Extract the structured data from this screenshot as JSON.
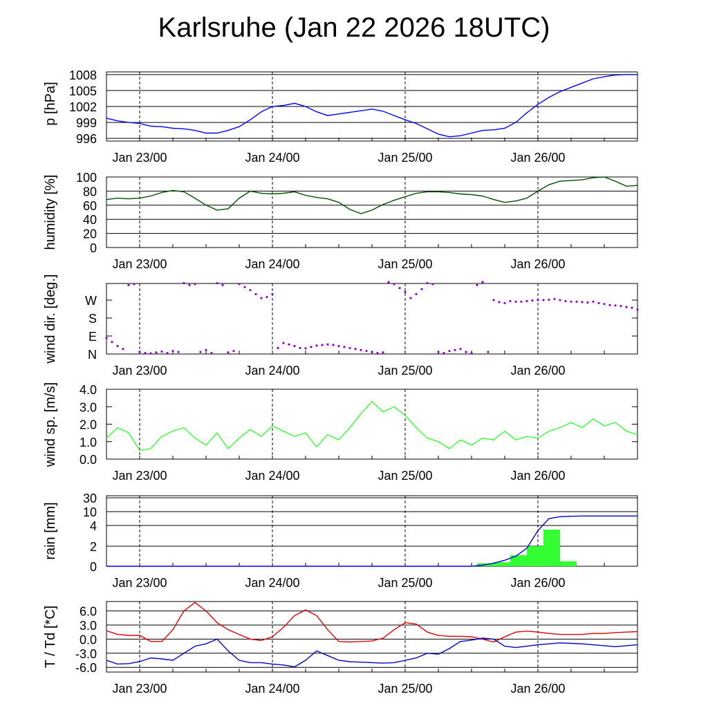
{
  "title": "Karlsruhe (Jan 22 2026 18UTC)",
  "x_ticks": [
    "Jan 23/00",
    "Jan 24/00",
    "Jan 25/00",
    "Jan 26/00"
  ],
  "colors": {
    "pressure": "#0000ff",
    "humidity": "#005000",
    "wind_dir": "#9400d3",
    "wind_speed": "#33ff33",
    "rain_bar": "#33ff33",
    "rain_line": "#0000dd",
    "temperature": "#e00000",
    "dewpoint": "#0000cc"
  },
  "chart_data": [
    {
      "id": "pressure",
      "type": "line",
      "ylabel": "p [hPa]",
      "yticks": [
        "1008",
        "1005",
        "1002",
        "999",
        "996"
      ],
      "ylim": [
        995.5,
        1008.5
      ],
      "x_unit": "hours since Jan 22 18UTC",
      "xlim": [
        0,
        96
      ],
      "series": [
        {
          "name": "pressure",
          "x": [
            0,
            2,
            4,
            6,
            8,
            10,
            12,
            14,
            16,
            18,
            20,
            22,
            24,
            26,
            28,
            30,
            32,
            34,
            36,
            38,
            40,
            42,
            44,
            46,
            48,
            50,
            52,
            54,
            56,
            58,
            60,
            62,
            64,
            66,
            68,
            70,
            72,
            74,
            76,
            78,
            80,
            82,
            84,
            86,
            88,
            90,
            92,
            94,
            96
          ],
          "y": [
            999.8,
            999.3,
            999.0,
            998.8,
            998.3,
            998.2,
            997.9,
            997.8,
            997.5,
            997.0,
            997.0,
            997.5,
            998.2,
            999.5,
            1001.0,
            1002.0,
            1002.2,
            1002.6,
            1002.0,
            1001.0,
            1000.3,
            1000.6,
            1000.9,
            1001.2,
            1001.5,
            1001.1,
            1000.3,
            999.5,
            998.8,
            997.8,
            996.8,
            996.3,
            996.5,
            997.0,
            997.5,
            997.6,
            997.9,
            999.0,
            1000.8,
            1002.4,
            1003.7,
            1004.8,
            1005.6,
            1006.4,
            1007.2,
            1007.6,
            1007.9,
            1008.0,
            1008.0
          ]
        }
      ]
    },
    {
      "id": "humidity",
      "type": "line",
      "ylabel": "humidity [%]",
      "yticks": [
        "100",
        "80",
        "60",
        "40",
        "20",
        "0"
      ],
      "ylim": [
        0,
        100
      ],
      "series": [
        {
          "name": "humidity",
          "x": [
            0,
            2,
            4,
            6,
            8,
            10,
            12,
            14,
            16,
            18,
            20,
            22,
            24,
            26,
            28,
            30,
            32,
            34,
            36,
            38,
            40,
            42,
            44,
            46,
            48,
            50,
            52,
            54,
            56,
            58,
            60,
            62,
            64,
            66,
            68,
            70,
            72,
            74,
            76,
            78,
            80,
            82,
            84,
            86,
            88,
            90,
            92,
            94,
            96
          ],
          "y": [
            68,
            70,
            69,
            70,
            73,
            78,
            81,
            79,
            70,
            60,
            53,
            55,
            70,
            80,
            77,
            76,
            77,
            79,
            74,
            71,
            69,
            64,
            54,
            48,
            53,
            61,
            67,
            72,
            77,
            79,
            79,
            78,
            76,
            75,
            73,
            68,
            64,
            66,
            70,
            80,
            89,
            94,
            95,
            96,
            99,
            100,
            94,
            87,
            88
          ]
        }
      ]
    },
    {
      "id": "wind_dir",
      "type": "scatter",
      "ylabel": "wind dir. [deg.]",
      "yticks": [
        "W",
        "S",
        "E",
        "N"
      ],
      "ylim": [
        0,
        360
      ],
      "series": [
        {
          "name": "wind direction",
          "x": [
            0,
            1,
            2,
            3,
            4,
            5,
            6,
            7,
            8,
            9,
            10,
            11,
            12,
            13,
            14,
            15,
            16,
            17,
            18,
            19,
            20,
            21,
            22,
            23,
            24,
            25,
            26,
            27,
            28,
            29,
            30,
            31,
            32,
            33,
            34,
            35,
            36,
            37,
            38,
            39,
            40,
            41,
            42,
            43,
            44,
            45,
            46,
            47,
            48,
            49,
            50,
            51,
            52,
            53,
            54,
            55,
            56,
            57,
            58,
            59,
            60,
            61,
            62,
            63,
            64,
            65,
            66,
            67,
            68,
            69,
            70,
            71,
            72,
            73,
            74,
            75,
            76,
            77,
            78,
            79,
            80,
            81,
            82,
            83,
            84,
            85,
            86,
            87,
            88,
            89,
            90,
            91,
            92,
            93,
            94,
            95,
            96
          ],
          "y": [
            80,
            60,
            40,
            25,
            345,
            350,
            10,
            5,
            3,
            8,
            12,
            5,
            15,
            10,
            355,
            345,
            350,
            10,
            20,
            5,
            355,
            345,
            8,
            15,
            350,
            335,
            320,
            300,
            280,
            285,
            300,
            30,
            55,
            48,
            40,
            30,
            28,
            35,
            42,
            45,
            48,
            45,
            40,
            35,
            30,
            25,
            20,
            15,
            10,
            5,
            8,
            360,
            350,
            330,
            310,
            280,
            300,
            325,
            355,
            350,
            10,
            5,
            15,
            20,
            25,
            10,
            5,
            345,
            360,
            10,
            270,
            260,
            255,
            265,
            262,
            262,
            265,
            268,
            270,
            270,
            272,
            275,
            270,
            265,
            262,
            262,
            260,
            258,
            262,
            255,
            250,
            245,
            243,
            240,
            235,
            232,
            222
          ]
        }
      ]
    },
    {
      "id": "wind_speed",
      "type": "line",
      "ylabel": "wind sp. [m/s]",
      "yticks": [
        "4.0",
        "3.0",
        "2.0",
        "1.0",
        "0.0"
      ],
      "ylim": [
        0,
        4
      ],
      "series": [
        {
          "name": "wind speed",
          "x": [
            0,
            2,
            4,
            6,
            8,
            10,
            12,
            14,
            16,
            18,
            20,
            22,
            24,
            26,
            28,
            30,
            32,
            34,
            36,
            38,
            40,
            42,
            44,
            46,
            48,
            50,
            52,
            54,
            56,
            58,
            60,
            62,
            64,
            66,
            68,
            70,
            72,
            74,
            76,
            78,
            80,
            82,
            84,
            86,
            88,
            90,
            92,
            94,
            96
          ],
          "y": [
            1.2,
            1.8,
            1.5,
            0.5,
            0.6,
            1.3,
            1.6,
            1.8,
            1.2,
            0.8,
            1.5,
            0.6,
            1.2,
            1.7,
            1.3,
            1.9,
            1.6,
            1.3,
            1.5,
            0.7,
            1.4,
            1.1,
            1.8,
            2.6,
            3.3,
            2.7,
            3.0,
            2.5,
            1.8,
            1.2,
            1.0,
            0.6,
            1.1,
            0.8,
            1.2,
            1.1,
            1.6,
            1.1,
            1.3,
            1.2,
            1.6,
            1.8,
            2.1,
            1.8,
            2.3,
            1.9,
            2.1,
            1.6,
            1.4
          ]
        }
      ]
    },
    {
      "id": "rain",
      "type": "bar+line",
      "ylabel": "rain [mm]",
      "yticks": [
        "30",
        "10",
        "4",
        "2",
        "0"
      ],
      "bars": [
        {
          "start": 67,
          "end": 70,
          "value": 0.3
        },
        {
          "start": 70,
          "end": 73,
          "value": 0.4
        },
        {
          "start": 73,
          "end": 76,
          "value": 1.1
        },
        {
          "start": 76,
          "end": 79,
          "value": 2.0
        },
        {
          "start": 79,
          "end": 82,
          "value": 3.6
        },
        {
          "start": 82,
          "end": 85,
          "value": 0.5
        }
      ],
      "series": [
        {
          "name": "accumulated rain",
          "x": [
            0,
            66,
            68,
            70,
            72,
            74,
            76,
            78,
            80,
            82,
            84,
            86,
            88,
            90,
            92,
            94,
            96
          ],
          "y": [
            0,
            0,
            0.1,
            0.3,
            0.6,
            1.0,
            1.8,
            3.5,
            7.0,
            7.8,
            8.0,
            8.1,
            8.1,
            8.1,
            8.1,
            8.1,
            8.1
          ]
        }
      ]
    },
    {
      "id": "temperature",
      "type": "line",
      "ylabel": "T / Td [*C]",
      "yticks": [
        "6.0",
        "3.0",
        "0.0",
        "-3.0",
        "-6.0"
      ],
      "ylim": [
        -7,
        8
      ],
      "series": [
        {
          "name": "T",
          "x": [
            0,
            2,
            4,
            6,
            8,
            10,
            12,
            14,
            16,
            18,
            20,
            22,
            24,
            26,
            28,
            30,
            32,
            34,
            36,
            38,
            40,
            42,
            44,
            46,
            48,
            50,
            52,
            54,
            56,
            58,
            60,
            62,
            64,
            66,
            68,
            70,
            72,
            74,
            76,
            78,
            80,
            82,
            84,
            86,
            88,
            90,
            92,
            94,
            96
          ],
          "y": [
            1.8,
            1.0,
            0.8,
            0.8,
            -0.5,
            -0.5,
            2.0,
            6.0,
            7.8,
            6.0,
            3.5,
            2.0,
            1.0,
            0.0,
            -0.3,
            0.5,
            2.5,
            5.0,
            6.2,
            5.0,
            2.0,
            -0.5,
            -0.6,
            -0.5,
            -0.4,
            0.2,
            2.0,
            3.5,
            3.2,
            1.5,
            0.8,
            0.6,
            0.6,
            0.5,
            0.0,
            -0.6,
            0.5,
            1.5,
            1.7,
            1.5,
            1.2,
            1.0,
            1.0,
            1.0,
            1.2,
            1.2,
            1.4,
            1.5,
            1.6
          ]
        },
        {
          "name": "Td",
          "x": [
            0,
            2,
            4,
            6,
            8,
            10,
            12,
            14,
            16,
            18,
            20,
            22,
            24,
            26,
            28,
            30,
            32,
            34,
            36,
            38,
            40,
            42,
            44,
            46,
            48,
            50,
            52,
            54,
            56,
            58,
            60,
            62,
            64,
            66,
            68,
            70,
            72,
            74,
            76,
            78,
            80,
            82,
            84,
            86,
            88,
            90,
            92,
            94,
            96
          ],
          "y": [
            -4.5,
            -5.3,
            -5.2,
            -4.8,
            -4.0,
            -4.2,
            -4.5,
            -3.0,
            -1.5,
            -1.0,
            0.0,
            -2.5,
            -4.5,
            -5.0,
            -5.0,
            -5.3,
            -5.5,
            -5.9,
            -4.5,
            -2.5,
            -3.5,
            -4.5,
            -4.8,
            -4.9,
            -5.0,
            -5.1,
            -5.0,
            -4.5,
            -4.0,
            -3.0,
            -3.2,
            -2.0,
            -0.5,
            -0.2,
            0.2,
            0.0,
            -1.5,
            -1.8,
            -1.5,
            -1.2,
            -1.0,
            -0.8,
            -0.9,
            -1.0,
            -1.2,
            -1.4,
            -1.6,
            -1.4,
            -1.2
          ]
        }
      ]
    }
  ]
}
